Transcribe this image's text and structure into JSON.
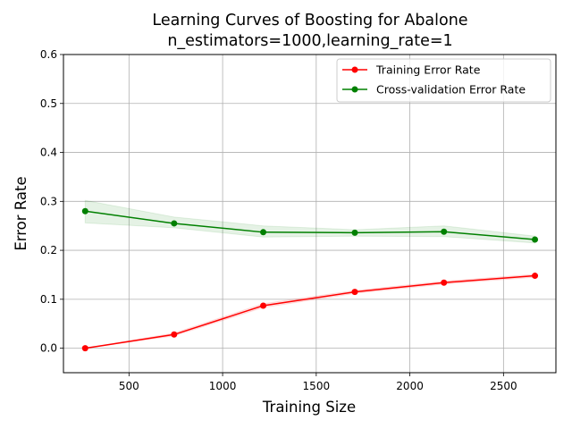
{
  "chart_data": {
    "type": "line",
    "title": "Learning Curves of Boosting for Abalone",
    "subtitle": "n_estimators=1000,learning_rate=1",
    "xlabel": "Training Size",
    "ylabel": "Error Rate",
    "xlim": [
      150,
      2780
    ],
    "ylim": [
      -0.05,
      0.6
    ],
    "xticks": [
      "500",
      "1000",
      "1500",
      "2000",
      "2500"
    ],
    "yticks": [
      "0.0",
      "0.1",
      "0.2",
      "0.3",
      "0.4",
      "0.5",
      "0.6"
    ],
    "grid": true,
    "legend_position": "top-right",
    "x": [
      266,
      741,
      1217,
      1706,
      2182,
      2668
    ],
    "series": [
      {
        "name": "Training Error Rate",
        "color": "#ff0000",
        "values": [
          0.0,
          0.028,
          0.087,
          0.115,
          0.134,
          0.148
        ],
        "band_low": [
          0.0,
          0.025,
          0.083,
          0.112,
          0.131,
          0.145
        ],
        "band_high": [
          0.0,
          0.031,
          0.091,
          0.118,
          0.137,
          0.151
        ]
      },
      {
        "name": "Cross-validation Error Rate",
        "color": "#008000",
        "values": [
          0.28,
          0.255,
          0.237,
          0.236,
          0.238,
          0.222
        ],
        "band_low": [
          0.256,
          0.246,
          0.227,
          0.229,
          0.228,
          0.215
        ],
        "band_high": [
          0.302,
          0.268,
          0.25,
          0.242,
          0.25,
          0.229
        ]
      }
    ]
  }
}
